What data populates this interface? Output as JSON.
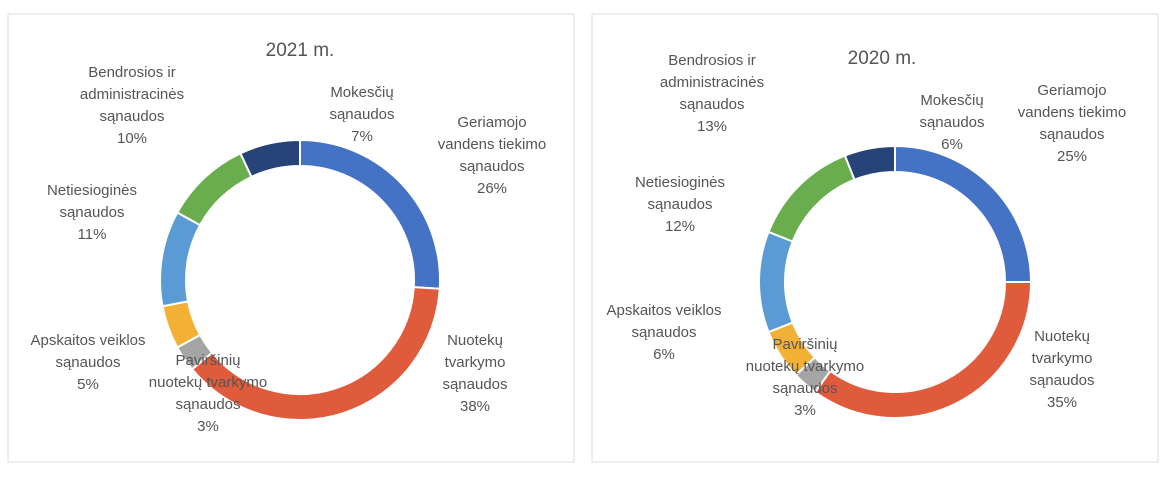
{
  "chart_data": [
    {
      "type": "donut",
      "title": "2021 m.",
      "categories": [
        "Geriamojo vandens tiekimo sąnaudos",
        "Nuotekų tvarkymo sąnaudos",
        "Paviršinių nuotekų tvarkymo sąnaudos",
        "Apskaitos veiklos sąnaudos",
        "Netiesioginės sąnaudos",
        "Bendrosios ir administracinės sąnaudos",
        "Mokesčių sąnaudos"
      ],
      "values": [
        26,
        38,
        3,
        5,
        11,
        10,
        7
      ],
      "value_labels": [
        "26%",
        "38%",
        "3%",
        "5%",
        "11%",
        "10%",
        "7%"
      ],
      "colors": [
        "#4472c4",
        "#e05a3c",
        "#a5a5a5",
        "#f2b134",
        "#5b9bd5",
        "#6aad4e",
        "#264478"
      ]
    },
    {
      "type": "donut",
      "title": "2020 m.",
      "categories": [
        "Geriamojo vandens tiekimo sąnaudos",
        "Nuotekų tvarkymo sąnaudos",
        "Paviršinių nuotekų tvarkymo sąnaudos",
        "Apskaitos veiklos sąnaudos",
        "Netiesioginės sąnaudos",
        "Bendrosios ir administracinės sąnaudos",
        "Mokesčių sąnaudos"
      ],
      "values": [
        25,
        35,
        3,
        6,
        12,
        13,
        6
      ],
      "value_labels": [
        "25%",
        "35%",
        "3%",
        "6%",
        "12%",
        "13%",
        "6%"
      ],
      "colors": [
        "#4472c4",
        "#e05a3c",
        "#a5a5a5",
        "#f2b134",
        "#5b9bd5",
        "#6aad4e",
        "#264478"
      ]
    }
  ]
}
